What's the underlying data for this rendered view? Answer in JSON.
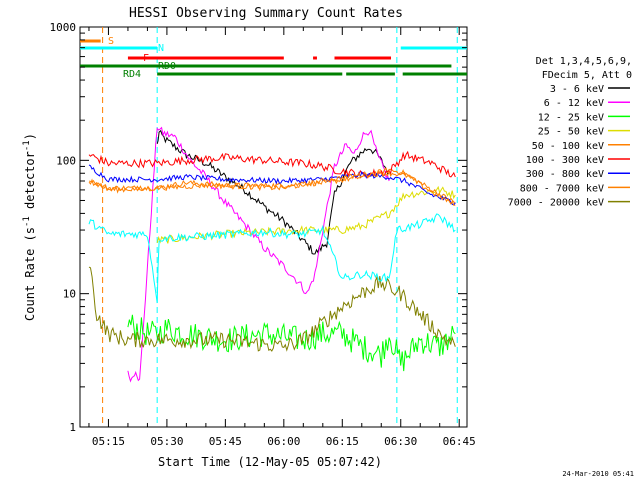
{
  "chart_data": {
    "type": "line",
    "title": "HESSI Observing Summary Count Rates",
    "xlabel": "Start Time (12-May-05 05:07:42)",
    "ylabel": "Count Rate (s",
    "ylabel_sup1": "-1",
    "ylabel_mid": " detector",
    "ylabel_sup2": "-1",
    "ylabel_end": ")",
    "y_scale": "log",
    "ylim": [
      1,
      1000
    ],
    "xlim": [
      "05:07:42",
      "06:47:00"
    ],
    "x_ticks": [
      "05:15",
      "05:30",
      "05:45",
      "06:00",
      "06:15",
      "06:30",
      "06:45"
    ],
    "y_ticks": [
      "1",
      "10",
      "100",
      "1000"
    ],
    "footer": "24-Mar-2010 05:41",
    "legend": {
      "header_lines": [
        "Det 1,3,4,5,6,9,",
        "FDecim 5, Att 0"
      ],
      "placement": "right"
    },
    "flags": [
      {
        "label": "S",
        "color": "#ff8000",
        "segments": [
          [
            "05:07:42",
            "05:13:00"
          ]
        ]
      },
      {
        "label": "N",
        "color": "#00ffff",
        "segments": [
          [
            "05:07:42",
            "05:27:30"
          ],
          [
            "06:30:00",
            "06:47:00"
          ]
        ]
      },
      {
        "label": "F",
        "color": "#ff0000",
        "segments": [
          [
            "05:20:00",
            "06:00:00"
          ],
          [
            "06:07:30",
            "06:08:30"
          ],
          [
            "06:13:00",
            "06:27:30"
          ]
        ]
      },
      {
        "label": "RD0",
        "color": "#008000",
        "segments": [
          [
            "05:07:42",
            "06:43:00"
          ]
        ]
      },
      {
        "label": "RD4",
        "color": "#008000",
        "segments": [
          [
            "05:27:30",
            "06:15:00"
          ],
          [
            "06:16:00",
            "06:28:30"
          ],
          [
            "06:30:30",
            "06:47:00"
          ]
        ]
      }
    ],
    "vlines": [
      {
        "time": "05:13:30",
        "color": "#ff8000"
      },
      {
        "time": "05:27:30",
        "color": "#00ffff"
      },
      {
        "time": "06:29:00",
        "color": "#00ffff"
      },
      {
        "time": "06:44:30",
        "color": "#00ffff"
      }
    ],
    "series": [
      {
        "name": "3 - 6 keV",
        "color": "#000000",
        "jitter": 0.03,
        "points": [
          [
            "05:27:30",
            130
          ],
          [
            "05:28",
            160
          ],
          [
            "05:30",
            140
          ],
          [
            "05:35",
            110
          ],
          [
            "05:40",
            95
          ],
          [
            "05:45",
            75
          ],
          [
            "05:50",
            60
          ],
          [
            "05:55",
            45
          ],
          [
            "06:00",
            35
          ],
          [
            "06:05",
            25
          ],
          [
            "06:08",
            20
          ],
          [
            "06:11",
            24
          ],
          [
            "06:13",
            55
          ],
          [
            "06:17",
            95
          ],
          [
            "06:20",
            115
          ],
          [
            "06:22",
            125
          ],
          [
            "06:24",
            110
          ],
          [
            "06:27",
            80
          ]
        ]
      },
      {
        "name": "6 - 12 keV",
        "color": "#ff00ff",
        "jitter": 0.03,
        "points": [
          [
            "05:20",
            2.5
          ],
          [
            "05:21",
            2.3
          ],
          [
            "05:22",
            2.7
          ],
          [
            "05:23",
            2.2
          ],
          [
            "05:27:30",
            180
          ],
          [
            "05:29",
            160
          ],
          [
            "05:32",
            150
          ],
          [
            "05:36",
            100
          ],
          [
            "05:40",
            75
          ],
          [
            "05:45",
            48
          ],
          [
            "05:50",
            33
          ],
          [
            "05:55",
            22
          ],
          [
            "06:00",
            16
          ],
          [
            "06:04",
            12
          ],
          [
            "06:06",
            10
          ],
          [
            "06:08",
            14
          ],
          [
            "06:10",
            30
          ],
          [
            "06:13",
            90
          ],
          [
            "06:16",
            130
          ],
          [
            "06:18",
            110
          ],
          [
            "06:20",
            150
          ],
          [
            "06:22",
            170
          ],
          [
            "06:24",
            110
          ],
          [
            "06:27",
            70
          ]
        ]
      },
      {
        "name": "12 - 25 keV",
        "color": "#00ff00",
        "jitter": 0.1,
        "points": [
          [
            "05:20",
            6
          ],
          [
            "05:25",
            5
          ],
          [
            "05:27:30",
            5
          ],
          [
            "05:30",
            5.5
          ],
          [
            "05:35",
            5
          ],
          [
            "05:45",
            4.5
          ],
          [
            "05:55",
            5
          ],
          [
            "06:05",
            4.5
          ],
          [
            "06:10",
            5
          ],
          [
            "06:15",
            5
          ],
          [
            "06:20",
            4
          ],
          [
            "06:25",
            3.5
          ],
          [
            "06:27",
            5
          ],
          [
            "06:30",
            3
          ],
          [
            "06:35",
            4.5
          ],
          [
            "06:40",
            4
          ],
          [
            "06:44",
            5
          ]
        ]
      },
      {
        "name": "25 - 50 keV",
        "color": "#dddd00",
        "jitter": 0.03,
        "points": [
          [
            "05:27:30",
            25
          ],
          [
            "05:45",
            28
          ],
          [
            "06:05",
            30
          ],
          [
            "06:15",
            30
          ],
          [
            "06:20",
            32
          ],
          [
            "06:27",
            40
          ],
          [
            "06:31",
            55
          ],
          [
            "06:40",
            60
          ],
          [
            "06:44",
            55
          ]
        ]
      },
      {
        "name": "50 - 100 keV",
        "color": "#ff8000",
        "jitter": 0.02,
        "points": [
          [
            "05:10",
            70
          ],
          [
            "05:15",
            62
          ],
          [
            "05:27:30",
            62
          ],
          [
            "05:35",
            68
          ],
          [
            "05:45",
            65
          ],
          [
            "06:00",
            65
          ],
          [
            "06:10",
            68
          ],
          [
            "06:20",
            75
          ],
          [
            "06:27",
            85
          ],
          [
            "06:31",
            80
          ],
          [
            "06:38",
            60
          ],
          [
            "06:44",
            48
          ]
        ]
      },
      {
        "name": "100 - 300 keV",
        "color": "#ff0000",
        "jitter": 0.03,
        "points": [
          [
            "05:10",
            110
          ],
          [
            "05:15",
            95
          ],
          [
            "05:27:30",
            95
          ],
          [
            "05:35",
            100
          ],
          [
            "05:45",
            105
          ],
          [
            "05:55",
            100
          ],
          [
            "06:05",
            95
          ],
          [
            "06:10",
            90
          ],
          [
            "06:13",
            85
          ],
          [
            "06:20",
            78
          ],
          [
            "06:27",
            82
          ],
          [
            "06:31",
            110
          ],
          [
            "06:38",
            95
          ],
          [
            "06:44",
            75
          ]
        ]
      },
      {
        "name": "300 - 800 keV",
        "color": "#0000ff",
        "jitter": 0.02,
        "points": [
          [
            "05:10",
            90
          ],
          [
            "05:15",
            72
          ],
          [
            "05:27:30",
            72
          ],
          [
            "05:35",
            75
          ],
          [
            "05:45",
            72
          ],
          [
            "06:00",
            70
          ],
          [
            "06:10",
            72
          ],
          [
            "06:20",
            78
          ],
          [
            "06:27",
            75
          ],
          [
            "06:31",
            70
          ],
          [
            "06:38",
            55
          ],
          [
            "06:44",
            48
          ]
        ]
      },
      {
        "name": "800 - 7000 keV",
        "color": "#ff8000",
        "jitter": 0.02,
        "points": [
          [
            "05:10",
            72
          ],
          [
            "05:15",
            60
          ],
          [
            "05:27:30",
            62
          ],
          [
            "05:40",
            65
          ],
          [
            "06:00",
            62
          ],
          [
            "06:10",
            70
          ],
          [
            "06:20",
            78
          ],
          [
            "06:27",
            80
          ],
          [
            "06:31",
            78
          ],
          [
            "06:38",
            58
          ],
          [
            "06:44",
            46
          ]
        ]
      },
      {
        "name": "7000 - 20000 keV",
        "color": "#808000",
        "jitter": 0.06,
        "points": [
          [
            "05:10",
            18
          ],
          [
            "05:12",
            7
          ],
          [
            "05:15",
            5
          ],
          [
            "05:20",
            4.5
          ],
          [
            "05:27:30",
            4.5
          ],
          [
            "05:35",
            4.5
          ],
          [
            "05:45",
            4.5
          ],
          [
            "06:00",
            4
          ],
          [
            "06:05",
            4.5
          ],
          [
            "06:10",
            6
          ],
          [
            "06:15",
            8
          ],
          [
            "06:22",
            11
          ],
          [
            "06:25",
            12
          ],
          [
            "06:30",
            10
          ],
          [
            "06:35",
            7
          ],
          [
            "06:40",
            5
          ],
          [
            "06:44",
            4
          ]
        ]
      },
      {
        "name": "",
        "color": "#00ffff",
        "jitter": 0.03,
        "points": [
          [
            "05:10",
            35
          ],
          [
            "05:15",
            28
          ],
          [
            "05:20",
            28
          ],
          [
            "05:25",
            28
          ],
          [
            "05:27:30",
            9
          ],
          [
            "05:28",
            26
          ],
          [
            "05:40",
            27
          ],
          [
            "05:55",
            29
          ],
          [
            "06:00",
            28
          ],
          [
            "06:05",
            28
          ],
          [
            "06:10",
            30
          ],
          [
            "06:15",
            13
          ],
          [
            "06:20",
            14
          ],
          [
            "06:27",
            13
          ],
          [
            "06:29",
            30
          ],
          [
            "06:35",
            33
          ],
          [
            "06:40",
            38
          ],
          [
            "06:44",
            30
          ]
        ]
      }
    ]
  }
}
